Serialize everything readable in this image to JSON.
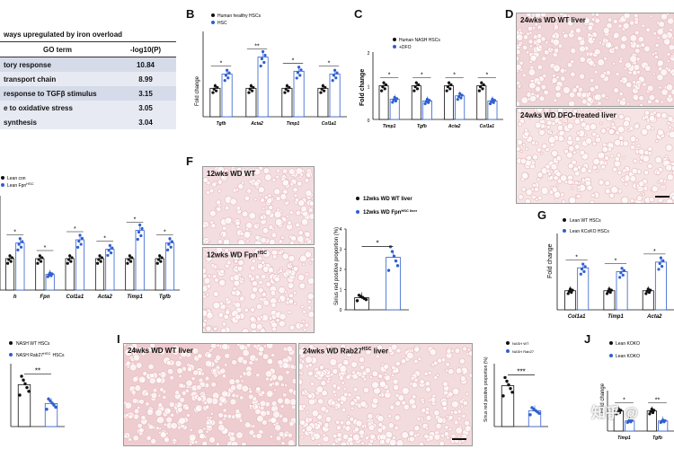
{
  "panel_letters": {
    "b": "B",
    "c": "C",
    "d": "D",
    "f": "F",
    "g": "G",
    "i": "I",
    "j": "J"
  },
  "table": {
    "header_title": "ways upregulated by iron overload",
    "col1": "GO term",
    "col2": "-log10(P)",
    "rows": [
      {
        "term": "tory response",
        "value": "10.84"
      },
      {
        "term": "transport chain",
        "value": "8.99"
      },
      {
        "term": "response to TGFβ stimulus",
        "value": "3.15"
      },
      {
        "term": "e to oxidative stress",
        "value": "3.05"
      },
      {
        "term": "synthesis",
        "value": "3.04"
      }
    ]
  },
  "panel_a2": {
    "legend": [
      "Lean con",
      "Lean Fpn"
    ],
    "legend_sup": "HSC",
    "categories": [
      "h",
      "Fpn",
      "Col1a1",
      "Acta2",
      "Timp1",
      "Tgfb"
    ]
  },
  "panel_b": {
    "ylabel": "Fold change",
    "legend": [
      "Human healthy HSCs",
      "HSC"
    ],
    "categories": [
      "Tgfb",
      "Acta2",
      "Timp1",
      "Col1a1"
    ],
    "sig": [
      "*",
      "**",
      "*",
      "*"
    ]
  },
  "panel_c": {
    "ylabel": "Fold change",
    "yticks": [
      "0",
      "1",
      "2"
    ],
    "legend": [
      "Human NASH HSCs",
      "+DFO"
    ],
    "categories": [
      "Timp1",
      "Tgfb",
      "Acta2",
      "Col1a1"
    ],
    "sig": [
      "*",
      "*",
      "*",
      "*"
    ]
  },
  "panel_d": {
    "top_label": "24wks WD WT liver",
    "bottom_label": "24wks WD DFO-treated liver"
  },
  "panel_f": {
    "top_label": "12wks WD WT",
    "bottom_label": "12wks WD Fpn",
    "bottom_sup": "HSC",
    "ylabel": "Sirius red positive proportion (%)",
    "yticks": [
      "0",
      "1",
      "2",
      "3",
      "4"
    ],
    "legend": [
      "12wks WD WT liver",
      "12wks WD Fpn"
    ],
    "legend_sup": "HSC liver",
    "sig": "*"
  },
  "panel_g": {
    "ylabel": "Fold change",
    "legend": [
      "Lean WT HSCs",
      "Lean KCoKO HSCs"
    ],
    "categories": [
      "Col1a1",
      "Timp1",
      "Acta2"
    ],
    "sig": [
      "*",
      "*",
      "*"
    ]
  },
  "panel_h": {
    "legend": [
      "NASH WT HSCs",
      "NASH Rab27"
    ],
    "legend_sup": "HSC",
    "sub2": "HSCs",
    "sig": "**"
  },
  "panel_i": {
    "left_label": "24wks WD WT liver",
    "right_label": "24wks WD Rab27",
    "right_sup": "HSC",
    "right_suffix": "liver",
    "ylabel": "Sirius red positive proportion (%)",
    "legend": [
      "NASH WT",
      "NASH Rab27"
    ],
    "sig": "***"
  },
  "panel_j": {
    "ylabel": "Fold change",
    "legend": [
      "Lean KOKO",
      "Lean KOKO"
    ],
    "categories": [
      "Timp1",
      "Tgfb"
    ],
    "sig": [
      "*",
      "**"
    ]
  },
  "watermark": "知乎 @",
  "colors": {
    "black": "#111111",
    "blue": "#2f5fd0",
    "stain": "#e8b7bb"
  },
  "chart_data": [
    {
      "type": "bar",
      "panel": "B",
      "categories": [
        "Tgfb",
        "Acta2",
        "Timp1",
        "Col1a1"
      ],
      "series": [
        {
          "name": "Human healthy HSCs",
          "values": [
            1.0,
            1.0,
            1.0,
            1.0
          ]
        },
        {
          "name": "HSC",
          "values": [
            1.5,
            2.1,
            1.6,
            1.5
          ]
        }
      ],
      "ylim": [
        0,
        3
      ]
    },
    {
      "type": "bar",
      "panel": "C",
      "categories": [
        "Timp1",
        "Tgfb",
        "Acta2",
        "Col1a1"
      ],
      "series": [
        {
          "name": "Human NASH HSCs",
          "values": [
            1.0,
            1.0,
            1.0,
            1.0
          ]
        },
        {
          "name": "+DFO",
          "values": [
            0.6,
            0.55,
            0.7,
            0.55
          ]
        }
      ],
      "ylim": [
        0,
        2
      ]
    },
    {
      "type": "bar",
      "panel": "A",
      "categories": [
        "h",
        "Fpn",
        "Col1a1",
        "Acta2",
        "Timp1",
        "Tgfb"
      ],
      "series": [
        {
          "name": "Lean con",
          "values": [
            1.0,
            1.0,
            1.0,
            1.0,
            1.0,
            1.0
          ]
        },
        {
          "name": "Lean Fpn",
          "values": [
            1.5,
            0.5,
            1.6,
            1.3,
            1.9,
            1.5
          ]
        }
      ],
      "ylim": [
        0,
        3
      ]
    },
    {
      "type": "bar",
      "panel": "F",
      "categories": [
        "12wks WD WT liver",
        "12wks WD Fpn HSC liver"
      ],
      "values": [
        0.6,
        2.6
      ],
      "ylim": [
        0,
        4
      ]
    },
    {
      "type": "bar",
      "panel": "G",
      "categories": [
        "Col1a1",
        "Timp1",
        "Acta2"
      ],
      "series": [
        {
          "name": "Lean WT HSCs",
          "values": [
            1.0,
            1.0,
            1.0
          ]
        },
        {
          "name": "Lean KCoKO HSCs",
          "values": [
            2.2,
            2.0,
            2.5
          ]
        }
      ],
      "ylim": [
        0,
        4
      ]
    },
    {
      "type": "bar",
      "panel": "H",
      "categories": [
        "NASH WT HSCs",
        "NASH Rab27 HSC HSCs"
      ],
      "values": [
        1.0,
        0.55
      ],
      "ylim": [
        0,
        1.5
      ]
    },
    {
      "type": "bar",
      "panel": "I",
      "categories": [
        "NASH WT",
        "NASH Rab27"
      ],
      "values": [
        2.6,
        1.0
      ],
      "ylim": [
        0,
        4
      ]
    },
    {
      "type": "bar",
      "panel": "J",
      "categories": [
        "Timp1",
        "Tgfb"
      ],
      "series": [
        {
          "name": "Lean KOKO",
          "values": [
            1.0,
            1.0
          ]
        },
        {
          "name": "Lean KOKO",
          "values": [
            0.5,
            0.5
          ]
        }
      ],
      "ylim": [
        0,
        2
      ]
    }
  ]
}
